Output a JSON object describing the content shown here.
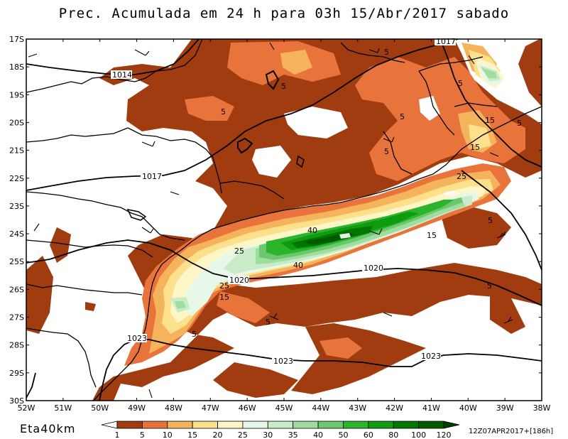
{
  "title": "Prec. Acumulada em 24 h para 03h 15/Abr/2017 sabado",
  "model_label": "Eta40km",
  "run_label": "12Z07APR2017+[186h]",
  "lat_labels": [
    "17S",
    "18S",
    "19S",
    "20S",
    "21S",
    "22S",
    "23S",
    "24S",
    "25S",
    "26S",
    "27S",
    "28S",
    "29S",
    "30S"
  ],
  "lon_labels": [
    "52W",
    "51W",
    "50W",
    "49W",
    "48W",
    "47W",
    "46W",
    "45W",
    "44W",
    "43W",
    "42W",
    "41W",
    "40W",
    "39W",
    "38W"
  ],
  "legend": {
    "colors": [
      "#ffffff",
      "#a03c10",
      "#e8743c",
      "#f5b45c",
      "#fde08c",
      "#fff6c8",
      "#e8f8e8",
      "#c8ecc8",
      "#a0dca0",
      "#6cc86c",
      "#2cb42c",
      "#109c10",
      "#007800",
      "#005a00",
      "#003c00"
    ],
    "labels": [
      "1",
      "5",
      "10",
      "15",
      "20",
      "25",
      "30",
      "35",
      "40",
      "50",
      "60",
      "80",
      "100",
      "120"
    ]
  },
  "isobars": [
    {
      "label": "1014"
    },
    {
      "label": "1017"
    },
    {
      "label": "1017"
    },
    {
      "label": "1020"
    },
    {
      "label": "1020"
    },
    {
      "label": "1023"
    },
    {
      "label": "1023"
    },
    {
      "label": "1023"
    }
  ],
  "precip_labels": [
    {
      "label": "5"
    },
    {
      "label": "5"
    },
    {
      "label": "5"
    },
    {
      "label": "5"
    },
    {
      "label": "5"
    },
    {
      "label": "5"
    },
    {
      "label": "5"
    },
    {
      "label": "5"
    },
    {
      "label": "5"
    },
    {
      "label": "5"
    },
    {
      "label": "15"
    },
    {
      "label": "15"
    },
    {
      "label": "15"
    },
    {
      "label": "15"
    },
    {
      "label": "25"
    },
    {
      "label": "25"
    },
    {
      "label": "25"
    },
    {
      "label": "40"
    },
    {
      "label": "40"
    }
  ]
}
